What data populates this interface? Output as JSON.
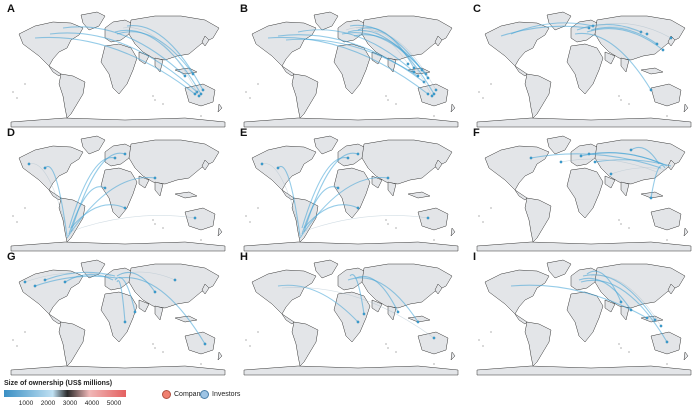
{
  "panels": [
    {
      "label": "A",
      "theme": "oceania"
    },
    {
      "label": "B",
      "theme": "oceania-dense"
    },
    {
      "label": "C",
      "theme": "east"
    },
    {
      "label": "D",
      "theme": "south-america"
    },
    {
      "label": "E",
      "theme": "south-america"
    },
    {
      "label": "F",
      "theme": "asia"
    },
    {
      "label": "G",
      "theme": "europe-atlantic"
    },
    {
      "label": "H",
      "theme": "africa"
    },
    {
      "label": "I",
      "theme": "southeast"
    }
  ],
  "legend": {
    "title": "Size of ownership (US$ millions)",
    "ticks": [
      "1000",
      "2000",
      "3000",
      "4000",
      "5000"
    ],
    "company_label": "Company",
    "investors_label": "Investors",
    "company_color": "#f08070",
    "investors_color": "#9ec4e4",
    "flow_color": "#3fa3d6"
  }
}
